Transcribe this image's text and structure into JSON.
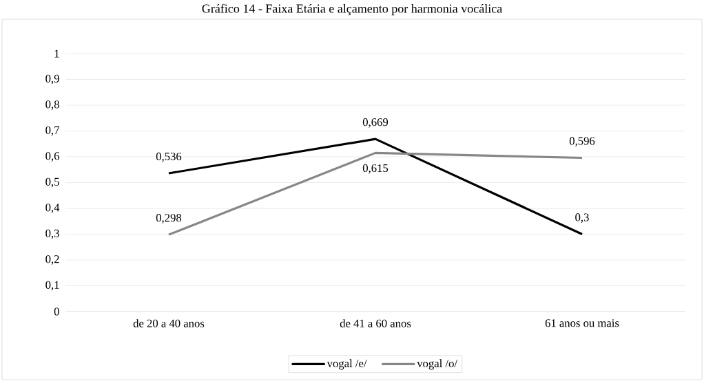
{
  "chart_data": {
    "type": "line",
    "title": "Gráfico 14 - Faixa Etária e alçamento por harmonia vocálica",
    "categories": [
      "de 20 a 40 anos",
      "de 41 a 60 anos",
      "61 anos ou mais"
    ],
    "series": [
      {
        "name": "vogal /e/",
        "color": "#000000",
        "values": [
          0.536,
          0.669,
          0.3
        ],
        "value_labels": [
          "0,536",
          "0,669",
          "0,3"
        ]
      },
      {
        "name": "vogal /o/",
        "color": "#878787",
        "values": [
          0.298,
          0.615,
          0.596
        ],
        "value_labels": [
          "0,298",
          "0,615",
          "0,596"
        ]
      }
    ],
    "ylim": [
      0,
      1
    ],
    "yticks": [
      {
        "value": 0,
        "label": "0"
      },
      {
        "value": 0.1,
        "label": "0,1"
      },
      {
        "value": 0.2,
        "label": "0,2"
      },
      {
        "value": 0.3,
        "label": "0,3"
      },
      {
        "value": 0.4,
        "label": "0,4"
      },
      {
        "value": 0.5,
        "label": "0,5"
      },
      {
        "value": 0.6,
        "label": "0,6"
      },
      {
        "value": 0.7,
        "label": "0,7"
      },
      {
        "value": 0.8,
        "label": "0,8"
      },
      {
        "value": 0.9,
        "label": "0,9"
      },
      {
        "value": 1,
        "label": "1"
      }
    ],
    "grid": "y",
    "legend": "bottom",
    "marker": "none",
    "line_style": "solid"
  }
}
